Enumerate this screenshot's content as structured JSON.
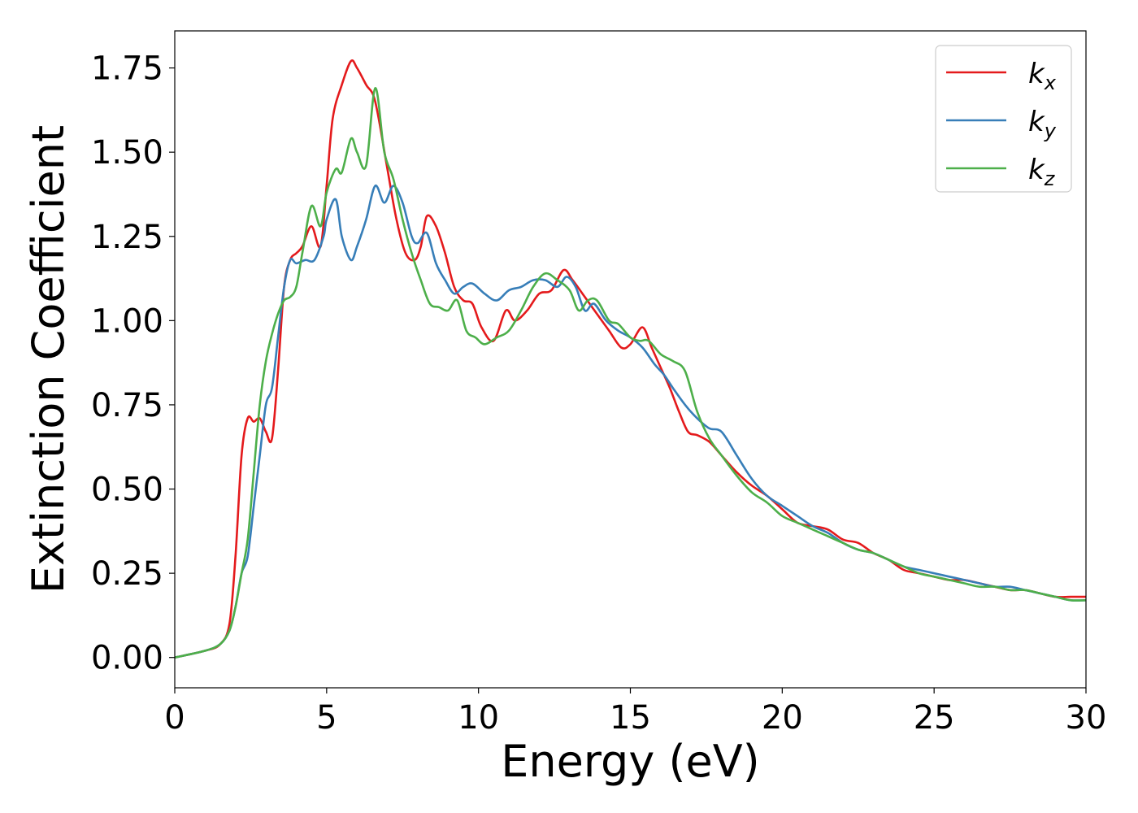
{
  "chart_data": {
    "type": "line",
    "title": "",
    "xlabel": "Energy (eV)",
    "ylabel": "Extinction Coefficient",
    "xlim": [
      0,
      30
    ],
    "ylim": [
      -0.09,
      1.86
    ],
    "grid": false,
    "legend_position": "top-right",
    "x_ticks": [
      0,
      5,
      10,
      15,
      20,
      25,
      30
    ],
    "y_ticks": [
      0.0,
      0.25,
      0.5,
      0.75,
      1.0,
      1.25,
      1.5,
      1.75
    ],
    "x_tick_labels": [
      "0",
      "5",
      "10",
      "15",
      "20",
      "25",
      "30"
    ],
    "y_tick_labels": [
      "0.00",
      "0.25",
      "0.50",
      "0.75",
      "1.00",
      "1.25",
      "1.50",
      "1.75"
    ],
    "series": [
      {
        "name": "k",
        "subscript": "x",
        "color": "#e41a1c",
        "x": [
          0,
          1,
          1.5,
          1.8,
          2.0,
          2.2,
          2.4,
          2.6,
          2.8,
          3.0,
          3.2,
          3.4,
          3.6,
          3.8,
          4.0,
          4.2,
          4.5,
          4.8,
          5.0,
          5.2,
          5.5,
          5.8,
          6.0,
          6.3,
          6.6,
          7.0,
          7.3,
          7.6,
          7.9,
          8.1,
          8.3,
          8.6,
          8.9,
          9.2,
          9.5,
          9.8,
          10.1,
          10.5,
          10.9,
          11.2,
          11.6,
          12.0,
          12.4,
          12.8,
          13.1,
          13.5,
          13.9,
          14.3,
          14.7,
          15.0,
          15.4,
          15.7,
          16.0,
          16.3,
          16.6,
          16.9,
          17.2,
          17.6,
          18.0,
          18.5,
          19.0,
          19.5,
          20.0,
          20.5,
          21.0,
          21.5,
          22.0,
          22.5,
          23.0,
          23.5,
          24.0,
          24.5,
          25.0,
          25.5,
          26.0,
          26.5,
          27.0,
          27.5,
          28.0,
          28.5,
          29.0,
          29.5,
          30.0
        ],
        "y": [
          0.0,
          0.02,
          0.04,
          0.1,
          0.3,
          0.6,
          0.71,
          0.7,
          0.71,
          0.67,
          0.65,
          0.85,
          1.1,
          1.18,
          1.2,
          1.22,
          1.28,
          1.22,
          1.4,
          1.6,
          1.7,
          1.77,
          1.75,
          1.7,
          1.65,
          1.45,
          1.3,
          1.2,
          1.18,
          1.22,
          1.31,
          1.28,
          1.2,
          1.1,
          1.06,
          1.05,
          0.98,
          0.94,
          1.03,
          1.0,
          1.03,
          1.08,
          1.09,
          1.15,
          1.12,
          1.07,
          1.02,
          0.97,
          0.92,
          0.93,
          0.98,
          0.92,
          0.86,
          0.8,
          0.73,
          0.67,
          0.66,
          0.64,
          0.6,
          0.55,
          0.51,
          0.48,
          0.44,
          0.4,
          0.39,
          0.38,
          0.35,
          0.34,
          0.31,
          0.29,
          0.26,
          0.25,
          0.24,
          0.23,
          0.23,
          0.22,
          0.21,
          0.2,
          0.2,
          0.19,
          0.18,
          0.18,
          0.18
        ]
      },
      {
        "name": "k",
        "subscript": "y",
        "color": "#377eb8",
        "x": [
          0,
          1,
          1.5,
          1.8,
          2.0,
          2.2,
          2.4,
          2.6,
          2.8,
          3.0,
          3.2,
          3.4,
          3.6,
          3.8,
          4.0,
          4.3,
          4.6,
          4.9,
          5.0,
          5.3,
          5.5,
          5.8,
          6.0,
          6.3,
          6.6,
          6.9,
          7.2,
          7.5,
          7.8,
          8.0,
          8.3,
          8.6,
          8.9,
          9.2,
          9.5,
          9.8,
          10.2,
          10.6,
          11.0,
          11.4,
          11.8,
          12.2,
          12.6,
          12.9,
          13.2,
          13.5,
          13.8,
          14.2,
          14.6,
          15.0,
          15.4,
          15.8,
          16.1,
          16.4,
          16.8,
          17.2,
          17.6,
          18.0,
          18.5,
          19.0,
          19.5,
          20.0,
          20.5,
          21.0,
          21.5,
          22.0,
          22.5,
          23.0,
          23.5,
          24.0,
          24.5,
          25.0,
          25.5,
          26.0,
          26.5,
          27.0,
          27.5,
          28.0,
          28.5,
          29.0,
          29.5,
          30.0
        ],
        "y": [
          0.0,
          0.02,
          0.04,
          0.08,
          0.15,
          0.25,
          0.3,
          0.45,
          0.6,
          0.75,
          0.8,
          0.95,
          1.1,
          1.18,
          1.17,
          1.18,
          1.18,
          1.25,
          1.3,
          1.36,
          1.25,
          1.18,
          1.22,
          1.3,
          1.4,
          1.35,
          1.4,
          1.35,
          1.25,
          1.23,
          1.26,
          1.17,
          1.12,
          1.08,
          1.1,
          1.11,
          1.08,
          1.06,
          1.09,
          1.1,
          1.12,
          1.12,
          1.1,
          1.13,
          1.1,
          1.03,
          1.05,
          1.0,
          0.97,
          0.95,
          0.92,
          0.87,
          0.84,
          0.8,
          0.75,
          0.71,
          0.68,
          0.67,
          0.6,
          0.53,
          0.48,
          0.45,
          0.42,
          0.39,
          0.37,
          0.34,
          0.32,
          0.31,
          0.29,
          0.27,
          0.26,
          0.25,
          0.24,
          0.23,
          0.22,
          0.21,
          0.21,
          0.2,
          0.19,
          0.18,
          0.17,
          0.17
        ]
      },
      {
        "name": "k",
        "subscript": "z",
        "color": "#4daf4a",
        "x": [
          0,
          1,
          1.5,
          1.8,
          2.0,
          2.2,
          2.4,
          2.6,
          2.8,
          3.0,
          3.2,
          3.4,
          3.6,
          3.8,
          4.0,
          4.2,
          4.5,
          4.8,
          5.0,
          5.3,
          5.5,
          5.8,
          6.0,
          6.3,
          6.6,
          6.9,
          7.2,
          7.5,
          7.8,
          8.1,
          8.4,
          8.7,
          9.0,
          9.3,
          9.6,
          9.9,
          10.2,
          10.6,
          11.0,
          11.4,
          11.8,
          12.2,
          12.6,
          13.0,
          13.3,
          13.6,
          13.9,
          14.3,
          14.6,
          15.0,
          15.3,
          15.6,
          16.0,
          16.4,
          16.8,
          17.2,
          17.6,
          18.0,
          18.5,
          19.0,
          19.5,
          20.0,
          20.5,
          21.0,
          21.5,
          22.0,
          22.5,
          23.0,
          23.5,
          24.0,
          24.5,
          25.0,
          25.5,
          26.0,
          26.5,
          27.0,
          27.5,
          28.0,
          28.5,
          29.0,
          29.5,
          30.0
        ],
        "y": [
          0.0,
          0.02,
          0.04,
          0.08,
          0.15,
          0.25,
          0.35,
          0.55,
          0.75,
          0.88,
          0.96,
          1.02,
          1.06,
          1.07,
          1.1,
          1.2,
          1.34,
          1.28,
          1.38,
          1.45,
          1.44,
          1.54,
          1.5,
          1.46,
          1.69,
          1.5,
          1.42,
          1.3,
          1.2,
          1.12,
          1.05,
          1.04,
          1.03,
          1.06,
          0.97,
          0.95,
          0.93,
          0.95,
          0.97,
          1.03,
          1.1,
          1.14,
          1.12,
          1.09,
          1.03,
          1.06,
          1.06,
          1.0,
          0.99,
          0.95,
          0.94,
          0.94,
          0.9,
          0.88,
          0.85,
          0.73,
          0.65,
          0.6,
          0.54,
          0.49,
          0.46,
          0.42,
          0.4,
          0.38,
          0.36,
          0.34,
          0.32,
          0.31,
          0.29,
          0.27,
          0.25,
          0.24,
          0.23,
          0.22,
          0.21,
          0.21,
          0.2,
          0.2,
          0.19,
          0.18,
          0.17,
          0.17
        ]
      }
    ]
  }
}
